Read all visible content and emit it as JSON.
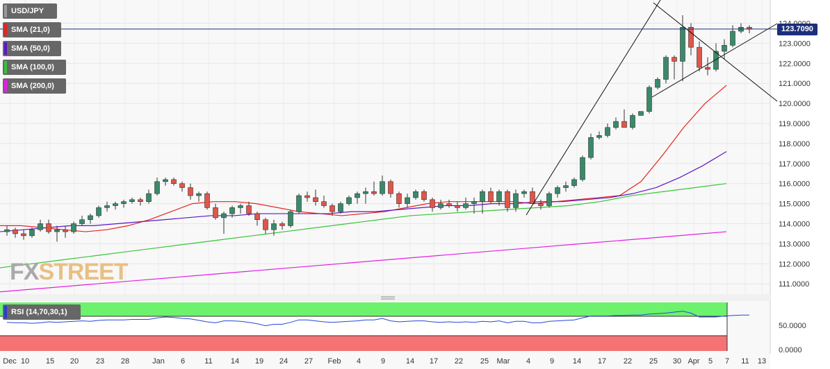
{
  "colors": {
    "bull": "#3a8a6a",
    "bear": "#e0564a",
    "sma21": "#e8231d",
    "sma50": "#5b16c8",
    "sma100": "#36c436",
    "sma200": "#e31ee3",
    "rsi": "#2746d8",
    "overbought": "#6cf26c",
    "oversold": "#f57373",
    "price_line": "#1c2f7a"
  },
  "legend": {
    "symbol": "USD/JPY",
    "items": [
      {
        "label": "SMA (21,0)",
        "color": "#e8231d"
      },
      {
        "label": "SMA (50,0)",
        "color": "#5b16c8"
      },
      {
        "label": "SMA (100,0)",
        "color": "#36c436"
      },
      {
        "label": "SMA (200,0)",
        "color": "#e31ee3"
      }
    ]
  },
  "watermark": {
    "part1": "FX",
    "part2": "STREET"
  },
  "price_tag": "123.7090",
  "rsi_label": "RSI (14,70,30,1)",
  "chart_data": {
    "type": "candlestick",
    "symbol": "USD/JPY",
    "y_axis_labels": [
      "124.0000",
      "123.0000",
      "122.0000",
      "121.0000",
      "120.0000",
      "119.0000",
      "118.0000",
      "117.0000",
      "116.0000",
      "115.0000",
      "114.0000",
      "113.0000",
      "112.0000",
      "111.0000"
    ],
    "ylim": [
      110.6,
      124.5
    ],
    "x_axis_labels": [
      "Dec",
      "10",
      "15",
      "20",
      "23",
      "28",
      "Jan",
      "6",
      "11",
      "14",
      "19",
      "24",
      "27",
      "Feb",
      "4",
      "9",
      "14",
      "17",
      "22",
      "25",
      "Mar",
      "4",
      "9",
      "14",
      "17",
      "22",
      "25",
      "30",
      "Apr",
      "5",
      "7",
      "11",
      "13"
    ],
    "candles": [
      {
        "o": 113.6,
        "h": 113.9,
        "l": 113.4,
        "c": 113.7
      },
      {
        "o": 113.7,
        "h": 113.8,
        "l": 113.3,
        "c": 113.5
      },
      {
        "o": 113.5,
        "h": 113.7,
        "l": 113.2,
        "c": 113.4
      },
      {
        "o": 113.4,
        "h": 113.8,
        "l": 113.3,
        "c": 113.7
      },
      {
        "o": 113.7,
        "h": 114.2,
        "l": 113.6,
        "c": 114.0
      },
      {
        "o": 114.0,
        "h": 114.2,
        "l": 113.5,
        "c": 113.6
      },
      {
        "o": 113.6,
        "h": 113.9,
        "l": 113.1,
        "c": 113.7
      },
      {
        "o": 113.7,
        "h": 113.9,
        "l": 113.3,
        "c": 113.6
      },
      {
        "o": 113.6,
        "h": 114.1,
        "l": 113.5,
        "c": 114.0
      },
      {
        "o": 114.0,
        "h": 114.4,
        "l": 113.9,
        "c": 114.2
      },
      {
        "o": 114.2,
        "h": 114.5,
        "l": 114.0,
        "c": 114.4
      },
      {
        "o": 114.4,
        "h": 114.9,
        "l": 114.3,
        "c": 114.8
      },
      {
        "o": 114.8,
        "h": 115.1,
        "l": 114.6,
        "c": 114.9
      },
      {
        "o": 114.9,
        "h": 115.1,
        "l": 114.7,
        "c": 115.0
      },
      {
        "o": 115.0,
        "h": 115.2,
        "l": 114.8,
        "c": 115.1
      },
      {
        "o": 115.1,
        "h": 115.3,
        "l": 115.0,
        "c": 115.2
      },
      {
        "o": 115.2,
        "h": 115.3,
        "l": 114.9,
        "c": 115.1
      },
      {
        "o": 115.1,
        "h": 115.7,
        "l": 115.0,
        "c": 115.5
      },
      {
        "o": 115.5,
        "h": 116.3,
        "l": 115.4,
        "c": 116.1
      },
      {
        "o": 116.1,
        "h": 116.3,
        "l": 115.9,
        "c": 116.2
      },
      {
        "o": 116.2,
        "h": 116.3,
        "l": 115.9,
        "c": 116.0
      },
      {
        "o": 116.0,
        "h": 116.1,
        "l": 115.6,
        "c": 115.8
      },
      {
        "o": 115.8,
        "h": 116.0,
        "l": 115.2,
        "c": 115.4
      },
      {
        "o": 115.4,
        "h": 115.6,
        "l": 115.1,
        "c": 115.5
      },
      {
        "o": 115.5,
        "h": 115.6,
        "l": 114.7,
        "c": 114.8
      },
      {
        "o": 114.8,
        "h": 115.0,
        "l": 114.2,
        "c": 114.3
      },
      {
        "o": 114.3,
        "h": 114.6,
        "l": 113.5,
        "c": 114.5
      },
      {
        "o": 114.5,
        "h": 114.9,
        "l": 114.3,
        "c": 114.8
      },
      {
        "o": 114.8,
        "h": 115.0,
        "l": 114.5,
        "c": 114.9
      },
      {
        "o": 114.9,
        "h": 115.1,
        "l": 114.4,
        "c": 114.5
      },
      {
        "o": 114.5,
        "h": 114.6,
        "l": 113.9,
        "c": 114.2
      },
      {
        "o": 114.2,
        "h": 114.3,
        "l": 113.5,
        "c": 113.7
      },
      {
        "o": 113.7,
        "h": 114.2,
        "l": 113.4,
        "c": 114.0
      },
      {
        "o": 114.0,
        "h": 114.1,
        "l": 113.7,
        "c": 113.9
      },
      {
        "o": 113.9,
        "h": 114.7,
        "l": 113.8,
        "c": 114.6
      },
      {
        "o": 114.6,
        "h": 115.5,
        "l": 114.5,
        "c": 115.4
      },
      {
        "o": 115.4,
        "h": 115.6,
        "l": 115.1,
        "c": 115.3
      },
      {
        "o": 115.3,
        "h": 115.7,
        "l": 114.9,
        "c": 115.1
      },
      {
        "o": 115.1,
        "h": 115.4,
        "l": 114.8,
        "c": 114.9
      },
      {
        "o": 114.9,
        "h": 115.0,
        "l": 114.4,
        "c": 114.6
      },
      {
        "o": 114.6,
        "h": 115.1,
        "l": 114.5,
        "c": 115.0
      },
      {
        "o": 115.0,
        "h": 115.4,
        "l": 114.9,
        "c": 115.3
      },
      {
        "o": 115.3,
        "h": 115.6,
        "l": 115.0,
        "c": 115.5
      },
      {
        "o": 115.5,
        "h": 115.8,
        "l": 115.0,
        "c": 115.6
      },
      {
        "o": 115.6,
        "h": 116.1,
        "l": 115.4,
        "c": 115.5
      },
      {
        "o": 115.5,
        "h": 116.4,
        "l": 115.4,
        "c": 116.1
      },
      {
        "o": 116.1,
        "h": 116.2,
        "l": 115.3,
        "c": 115.5
      },
      {
        "o": 115.5,
        "h": 115.6,
        "l": 114.8,
        "c": 115.0
      },
      {
        "o": 115.0,
        "h": 115.5,
        "l": 114.8,
        "c": 115.3
      },
      {
        "o": 115.3,
        "h": 115.7,
        "l": 115.2,
        "c": 115.6
      },
      {
        "o": 115.6,
        "h": 115.7,
        "l": 115.1,
        "c": 115.2
      },
      {
        "o": 115.2,
        "h": 115.3,
        "l": 114.6,
        "c": 114.8
      },
      {
        "o": 114.8,
        "h": 115.2,
        "l": 114.7,
        "c": 115.0
      },
      {
        "o": 115.0,
        "h": 115.2,
        "l": 114.8,
        "c": 114.9
      },
      {
        "o": 114.9,
        "h": 115.1,
        "l": 114.6,
        "c": 114.8
      },
      {
        "o": 114.8,
        "h": 115.3,
        "l": 114.7,
        "c": 115.0
      },
      {
        "o": 115.0,
        "h": 115.3,
        "l": 114.5,
        "c": 115.1
      },
      {
        "o": 115.1,
        "h": 115.7,
        "l": 114.5,
        "c": 115.6
      },
      {
        "o": 115.6,
        "h": 115.8,
        "l": 115.0,
        "c": 115.1
      },
      {
        "o": 115.1,
        "h": 115.7,
        "l": 114.9,
        "c": 115.6
      },
      {
        "o": 115.6,
        "h": 115.7,
        "l": 114.6,
        "c": 114.8
      },
      {
        "o": 114.8,
        "h": 115.7,
        "l": 114.6,
        "c": 115.5
      },
      {
        "o": 115.5,
        "h": 115.7,
        "l": 115.3,
        "c": 115.6
      },
      {
        "o": 115.6,
        "h": 115.8,
        "l": 115.0,
        "c": 115.0
      },
      {
        "o": 115.0,
        "h": 115.2,
        "l": 114.7,
        "c": 114.9
      },
      {
        "o": 114.9,
        "h": 115.6,
        "l": 114.8,
        "c": 115.5
      },
      {
        "o": 115.5,
        "h": 115.9,
        "l": 115.3,
        "c": 115.8
      },
      {
        "o": 115.8,
        "h": 116.1,
        "l": 115.6,
        "c": 115.9
      },
      {
        "o": 115.9,
        "h": 116.3,
        "l": 115.8,
        "c": 116.2
      },
      {
        "o": 116.2,
        "h": 117.4,
        "l": 116.1,
        "c": 117.3
      },
      {
        "o": 117.3,
        "h": 118.5,
        "l": 117.2,
        "c": 118.3
      },
      {
        "o": 118.3,
        "h": 118.6,
        "l": 118.2,
        "c": 118.4
      },
      {
        "o": 118.4,
        "h": 119.0,
        "l": 118.3,
        "c": 118.8
      },
      {
        "o": 118.8,
        "h": 119.3,
        "l": 118.7,
        "c": 119.1
      },
      {
        "o": 119.1,
        "h": 119.7,
        "l": 118.8,
        "c": 118.8
      },
      {
        "o": 118.8,
        "h": 119.5,
        "l": 118.7,
        "c": 119.4
      },
      {
        "o": 119.4,
        "h": 119.6,
        "l": 119.4,
        "c": 119.6
      },
      {
        "o": 119.6,
        "h": 120.9,
        "l": 119.5,
        "c": 120.8
      },
      {
        "o": 120.8,
        "h": 121.3,
        "l": 120.7,
        "c": 121.2
      },
      {
        "o": 121.2,
        "h": 122.4,
        "l": 121.0,
        "c": 122.3
      },
      {
        "o": 122.3,
        "h": 122.4,
        "l": 121.2,
        "c": 122.1
      },
      {
        "o": 122.1,
        "h": 124.4,
        "l": 121.1,
        "c": 123.8
      },
      {
        "o": 123.8,
        "h": 124.0,
        "l": 122.4,
        "c": 122.8
      },
      {
        "o": 122.8,
        "h": 123.1,
        "l": 121.6,
        "c": 121.8
      },
      {
        "o": 121.8,
        "h": 122.3,
        "l": 121.4,
        "c": 121.7
      },
      {
        "o": 121.7,
        "h": 123.0,
        "l": 121.6,
        "c": 122.6
      },
      {
        "o": 122.6,
        "h": 123.2,
        "l": 122.2,
        "c": 122.9
      },
      {
        "o": 122.9,
        "h": 123.9,
        "l": 122.8,
        "c": 123.6
      },
      {
        "o": 123.6,
        "h": 124.0,
        "l": 123.5,
        "c": 123.8
      },
      {
        "o": 123.8,
        "h": 123.9,
        "l": 123.5,
        "c": 123.7
      }
    ],
    "sma": [
      {
        "name": "SMA (21,0)",
        "color": "#e8231d",
        "points": [
          113.9,
          113.9,
          113.8,
          113.7,
          113.6,
          113.7,
          113.9,
          114.2,
          114.6,
          115.0,
          115.1,
          115.1,
          115.0,
          114.8,
          114.6,
          114.5,
          114.4,
          114.5,
          114.6,
          114.8,
          115.0,
          115.1,
          115.1,
          115.1,
          115.1,
          115.0,
          115.1,
          115.2,
          115.3,
          115.4,
          116.1,
          117.4,
          118.8,
          120.0,
          120.9
        ]
      },
      {
        "name": "SMA (50,0)",
        "color": "#5b16c8",
        "points": [
          113.6,
          113.7,
          113.8,
          113.9,
          113.9,
          114.0,
          114.1,
          114.2,
          114.3,
          114.4,
          114.4,
          114.5,
          114.5,
          114.5,
          114.5,
          114.6,
          114.6,
          114.7,
          114.8,
          114.9,
          114.9,
          115.0,
          115.0,
          115.1,
          115.1,
          115.2,
          115.3,
          115.5,
          115.8,
          116.3,
          116.9,
          117.6
        ]
      },
      {
        "name": "SMA (100,0)",
        "color": "#36c436",
        "points": [
          111.8,
          112.0,
          112.2,
          112.4,
          112.6,
          112.8,
          113.0,
          113.2,
          113.4,
          113.6,
          113.8,
          114.0,
          114.2,
          114.4,
          114.5,
          114.6,
          114.7,
          114.8,
          114.9,
          115.1,
          115.4,
          115.6,
          115.8,
          116.0
        ]
      },
      {
        "name": "SMA (200,0)",
        "color": "#e31ee3",
        "points": [
          110.6,
          110.8,
          111.0,
          111.2,
          111.4,
          111.6,
          111.8,
          112.0,
          112.2,
          112.4,
          112.6,
          112.8,
          113.0,
          113.2,
          113.4,
          113.6
        ]
      }
    ],
    "rsi": {
      "label": "RSI (14,70,30,1)",
      "y_axis_labels": [
        "50.0000",
        "0.0000"
      ],
      "values": [
        59,
        58,
        58,
        57,
        58,
        60,
        59,
        60,
        61,
        62,
        61,
        63,
        64,
        64,
        64,
        65,
        65,
        65,
        68,
        70,
        69,
        67,
        66,
        63,
        60,
        58,
        62,
        62,
        61,
        59,
        56,
        52,
        55,
        55,
        59,
        64,
        64,
        62,
        60,
        59,
        60,
        61,
        62,
        64,
        64,
        67,
        62,
        60,
        61,
        62,
        62,
        60,
        59,
        60,
        59,
        60,
        59,
        61,
        60,
        62,
        58,
        61,
        61,
        58,
        58,
        61,
        62,
        63,
        64,
        68,
        72,
        72,
        72,
        73,
        73,
        74,
        74,
        76,
        77,
        78,
        80,
        82,
        78,
        70,
        70,
        70,
        72,
        73,
        74,
        74
      ]
    }
  }
}
